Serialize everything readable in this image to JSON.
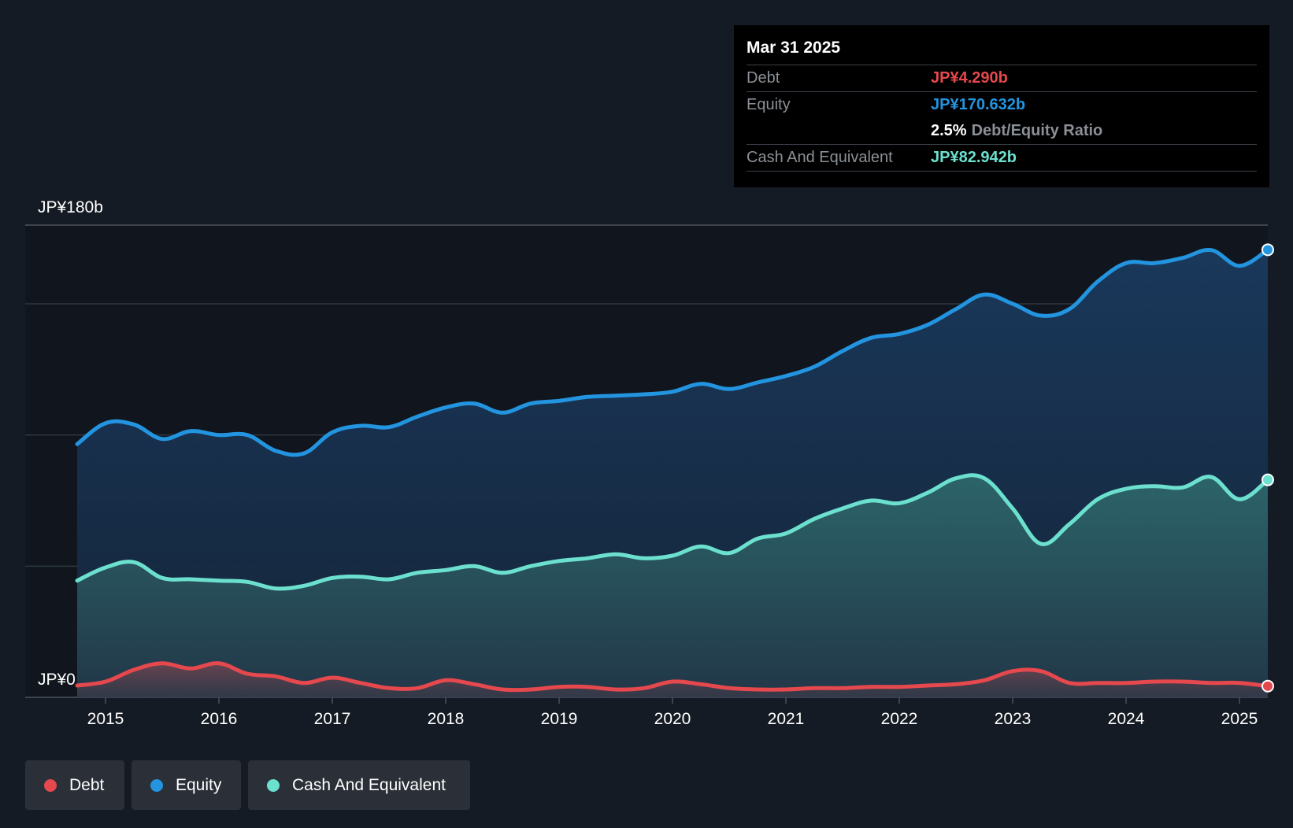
{
  "colors": {
    "background": "#151b24",
    "debt": "#e5484d",
    "equity": "#2394df",
    "cash": "#6ce0cf",
    "grid": "#2e3641"
  },
  "tooltip": {
    "date": "Mar 31 2025",
    "debt_label": "Debt",
    "debt_value": "JP¥4.290b",
    "equity_label": "Equity",
    "equity_value": "JP¥170.632b",
    "ratio_value": "2.5%",
    "ratio_label": "Debt/Equity Ratio",
    "cash_label": "Cash And Equivalent",
    "cash_value": "JP¥82.942b"
  },
  "legend": {
    "debt": "Debt",
    "equity": "Equity",
    "cash": "Cash And Equivalent"
  },
  "chart_data": {
    "type": "area",
    "title": "",
    "xlabel": "",
    "ylabel": "",
    "ylim": [
      0,
      180
    ],
    "y_unit": "JP¥ billions",
    "y_tick_labels": [
      {
        "value": 180,
        "label": "JP¥180b"
      },
      {
        "value": 0,
        "label": "JP¥0"
      }
    ],
    "gridlines": [
      150,
      100,
      50
    ],
    "x_ticks": [
      "2015",
      "2016",
      "2017",
      "2018",
      "2019",
      "2020",
      "2021",
      "2022",
      "2023",
      "2024",
      "2025"
    ],
    "legend_position": "bottom-left",
    "series": [
      {
        "name": "Equity",
        "key": "equity",
        "points": [
          [
            2014.75,
            96.5
          ],
          [
            2015.0,
            104.5
          ],
          [
            2015.25,
            104.0
          ],
          [
            2015.5,
            98.5
          ],
          [
            2015.75,
            101.5
          ],
          [
            2016.0,
            100.0
          ],
          [
            2016.25,
            100.0
          ],
          [
            2016.5,
            94.0
          ],
          [
            2016.75,
            93.0
          ],
          [
            2017.0,
            101.0
          ],
          [
            2017.25,
            103.5
          ],
          [
            2017.5,
            103.0
          ],
          [
            2017.75,
            107.0
          ],
          [
            2018.0,
            110.5
          ],
          [
            2018.25,
            112.0
          ],
          [
            2018.5,
            108.5
          ],
          [
            2018.75,
            112.0
          ],
          [
            2019.0,
            113.0
          ],
          [
            2019.25,
            114.5
          ],
          [
            2019.5,
            115.0
          ],
          [
            2019.75,
            115.5
          ],
          [
            2020.0,
            116.5
          ],
          [
            2020.25,
            119.5
          ],
          [
            2020.5,
            117.5
          ],
          [
            2020.75,
            120.0
          ],
          [
            2021.0,
            122.5
          ],
          [
            2021.25,
            126.0
          ],
          [
            2021.5,
            132.0
          ],
          [
            2021.75,
            137.0
          ],
          [
            2022.0,
            138.5
          ],
          [
            2022.25,
            142.0
          ],
          [
            2022.5,
            148.0
          ],
          [
            2022.75,
            153.5
          ],
          [
            2023.0,
            150.0
          ],
          [
            2023.25,
            145.5
          ],
          [
            2023.5,
            148.0
          ],
          [
            2023.75,
            158.5
          ],
          [
            2024.0,
            165.5
          ],
          [
            2024.25,
            165.5
          ],
          [
            2024.5,
            167.5
          ],
          [
            2024.75,
            170.5
          ],
          [
            2025.0,
            164.5
          ],
          [
            2025.25,
            170.6
          ]
        ]
      },
      {
        "name": "Cash And Equivalent",
        "key": "cash",
        "points": [
          [
            2014.75,
            44.5
          ],
          [
            2015.0,
            49.5
          ],
          [
            2015.25,
            51.5
          ],
          [
            2015.5,
            45.5
          ],
          [
            2015.75,
            45.0
          ],
          [
            2016.0,
            44.5
          ],
          [
            2016.25,
            44.0
          ],
          [
            2016.5,
            41.5
          ],
          [
            2016.75,
            42.5
          ],
          [
            2017.0,
            45.5
          ],
          [
            2017.25,
            46.0
          ],
          [
            2017.5,
            45.0
          ],
          [
            2017.75,
            47.5
          ],
          [
            2018.0,
            48.5
          ],
          [
            2018.25,
            50.0
          ],
          [
            2018.5,
            47.5
          ],
          [
            2018.75,
            50.0
          ],
          [
            2019.0,
            52.0
          ],
          [
            2019.25,
            53.0
          ],
          [
            2019.5,
            54.5
          ],
          [
            2019.75,
            53.0
          ],
          [
            2020.0,
            54.0
          ],
          [
            2020.25,
            57.5
          ],
          [
            2020.5,
            55.0
          ],
          [
            2020.75,
            60.5
          ],
          [
            2021.0,
            62.5
          ],
          [
            2021.25,
            68.0
          ],
          [
            2021.5,
            72.0
          ],
          [
            2021.75,
            75.0
          ],
          [
            2022.0,
            74.0
          ],
          [
            2022.25,
            78.0
          ],
          [
            2022.5,
            83.5
          ],
          [
            2022.75,
            83.5
          ],
          [
            2023.0,
            72.0
          ],
          [
            2023.25,
            58.5
          ],
          [
            2023.5,
            66.0
          ],
          [
            2023.75,
            75.5
          ],
          [
            2024.0,
            79.5
          ],
          [
            2024.25,
            80.5
          ],
          [
            2024.5,
            80.0
          ],
          [
            2024.75,
            84.0
          ],
          [
            2025.0,
            75.5
          ],
          [
            2025.25,
            82.9
          ]
        ]
      },
      {
        "name": "Debt",
        "key": "debt",
        "points": [
          [
            2014.75,
            4.5
          ],
          [
            2015.0,
            6.0
          ],
          [
            2015.25,
            10.5
          ],
          [
            2015.5,
            13.0
          ],
          [
            2015.75,
            11.0
          ],
          [
            2016.0,
            13.0
          ],
          [
            2016.25,
            9.0
          ],
          [
            2016.5,
            8.0
          ],
          [
            2016.75,
            5.5
          ],
          [
            2017.0,
            7.5
          ],
          [
            2017.25,
            5.5
          ],
          [
            2017.5,
            3.5
          ],
          [
            2017.75,
            3.5
          ],
          [
            2018.0,
            6.5
          ],
          [
            2018.25,
            5.0
          ],
          [
            2018.5,
            3.0
          ],
          [
            2018.75,
            3.0
          ],
          [
            2019.0,
            4.0
          ],
          [
            2019.25,
            4.0
          ],
          [
            2019.5,
            3.0
          ],
          [
            2019.75,
            3.5
          ],
          [
            2020.0,
            6.0
          ],
          [
            2020.25,
            5.0
          ],
          [
            2020.5,
            3.5
          ],
          [
            2020.75,
            3.0
          ],
          [
            2021.0,
            3.0
          ],
          [
            2021.25,
            3.5
          ],
          [
            2021.5,
            3.5
          ],
          [
            2021.75,
            4.0
          ],
          [
            2022.0,
            4.0
          ],
          [
            2022.25,
            4.5
          ],
          [
            2022.5,
            5.0
          ],
          [
            2022.75,
            6.5
          ],
          [
            2023.0,
            10.0
          ],
          [
            2023.25,
            10.0
          ],
          [
            2023.5,
            5.5
          ],
          [
            2023.75,
            5.5
          ],
          [
            2024.0,
            5.5
          ],
          [
            2024.25,
            6.0
          ],
          [
            2024.5,
            6.0
          ],
          [
            2024.75,
            5.5
          ],
          [
            2025.0,
            5.5
          ],
          [
            2025.25,
            4.29
          ]
        ]
      }
    ]
  }
}
